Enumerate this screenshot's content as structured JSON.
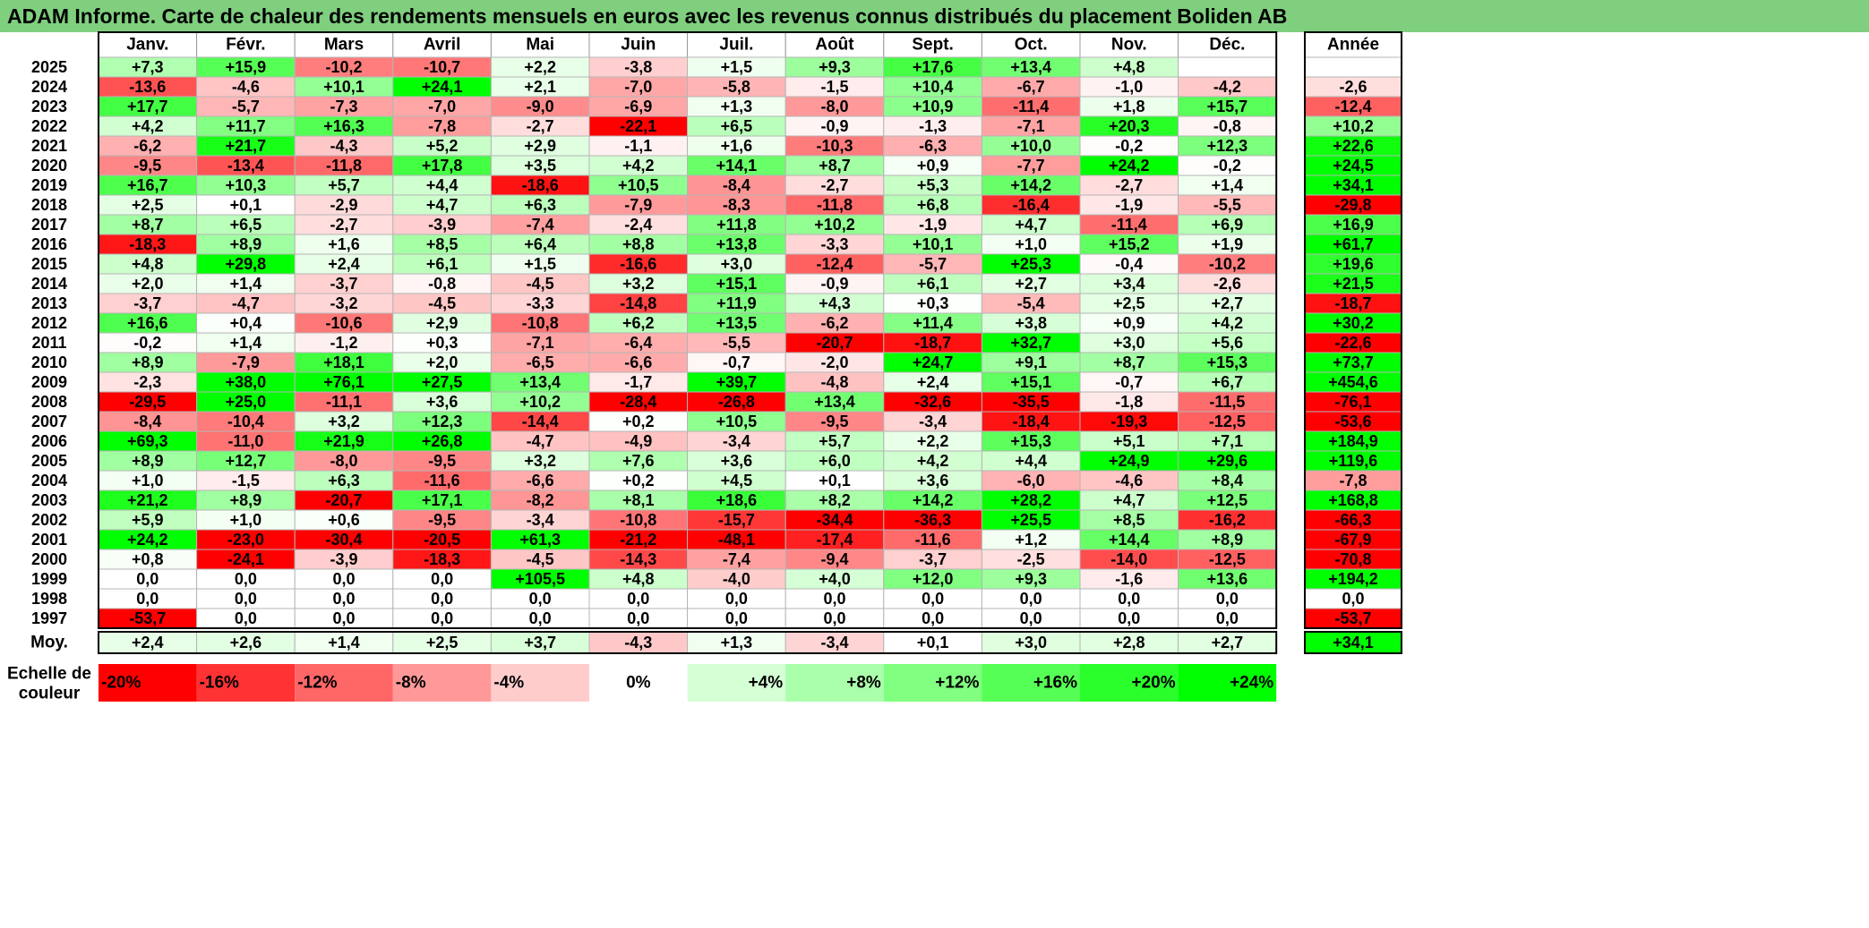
{
  "title": "ADAM Informe. Carte de chaleur des rendements mensuels en euros avec les revenus connus distribués du placement Boliden AB",
  "chart_data": {
    "type": "heatmap",
    "months": [
      "Janv.",
      "Févr.",
      "Mars",
      "Avril",
      "Mai",
      "Juin",
      "Juil.",
      "Août",
      "Sept.",
      "Oct.",
      "Nov.",
      "Déc."
    ],
    "year_header": "Année",
    "rows": [
      {
        "year": "2025",
        "values": [
          "+7,3",
          "+15,9",
          "-10,2",
          "-10,7",
          "+2,2",
          "-3,8",
          "+1,5",
          "+9,3",
          "+17,6",
          "+13,4",
          "+4,8",
          ""
        ],
        "annual": ""
      },
      {
        "year": "2024",
        "values": [
          "-13,6",
          "-4,6",
          "+10,1",
          "+24,1",
          "+2,1",
          "-7,0",
          "-5,8",
          "-1,5",
          "+10,4",
          "-6,7",
          "-1,0",
          "-4,2"
        ],
        "annual": "-2,6"
      },
      {
        "year": "2023",
        "values": [
          "+17,7",
          "-5,7",
          "-7,3",
          "-7,0",
          "-9,0",
          "-6,9",
          "+1,3",
          "-8,0",
          "+10,9",
          "-11,4",
          "+1,8",
          "+15,7"
        ],
        "annual": "-12,4"
      },
      {
        "year": "2022",
        "values": [
          "+4,2",
          "+11,7",
          "+16,3",
          "-7,8",
          "-2,7",
          "-22,1",
          "+6,5",
          "-0,9",
          "-1,3",
          "-7,1",
          "+20,3",
          "-0,8"
        ],
        "annual": "+10,2"
      },
      {
        "year": "2021",
        "values": [
          "-6,2",
          "+21,7",
          "-4,3",
          "+5,2",
          "+2,9",
          "-1,1",
          "+1,6",
          "-10,3",
          "-6,3",
          "+10,0",
          "-0,2",
          "+12,3"
        ],
        "annual": "+22,6"
      },
      {
        "year": "2020",
        "values": [
          "-9,5",
          "-13,4",
          "-11,8",
          "+17,8",
          "+3,5",
          "+4,2",
          "+14,1",
          "+8,7",
          "+0,9",
          "-7,7",
          "+24,2",
          "-0,2"
        ],
        "annual": "+24,5"
      },
      {
        "year": "2019",
        "values": [
          "+16,7",
          "+10,3",
          "+5,7",
          "+4,4",
          "-18,6",
          "+10,5",
          "-8,4",
          "-2,7",
          "+5,3",
          "+14,2",
          "-2,7",
          "+1,4"
        ],
        "annual": "+34,1"
      },
      {
        "year": "2018",
        "values": [
          "+2,5",
          "+0,1",
          "-2,9",
          "+4,7",
          "+6,3",
          "-7,9",
          "-8,3",
          "-11,8",
          "+6,8",
          "-16,4",
          "-1,9",
          "-5,5"
        ],
        "annual": "-29,8"
      },
      {
        "year": "2017",
        "values": [
          "+8,7",
          "+6,5",
          "-2,7",
          "-3,9",
          "-7,4",
          "-2,4",
          "+11,8",
          "+10,2",
          "-1,9",
          "+4,7",
          "-11,4",
          "+6,9"
        ],
        "annual": "+16,9"
      },
      {
        "year": "2016",
        "values": [
          "-18,3",
          "+8,9",
          "+1,6",
          "+8,5",
          "+6,4",
          "+8,8",
          "+13,8",
          "-3,3",
          "+10,1",
          "+1,0",
          "+15,2",
          "+1,9"
        ],
        "annual": "+61,7"
      },
      {
        "year": "2015",
        "values": [
          "+4,8",
          "+29,8",
          "+2,4",
          "+6,1",
          "+1,5",
          "-16,6",
          "+3,0",
          "-12,4",
          "-5,7",
          "+25,3",
          "-0,4",
          "-10,2"
        ],
        "annual": "+19,6"
      },
      {
        "year": "2014",
        "values": [
          "+2,0",
          "+1,4",
          "-3,7",
          "-0,8",
          "-4,5",
          "+3,2",
          "+15,1",
          "-0,9",
          "+6,1",
          "+2,7",
          "+3,4",
          "-2,6"
        ],
        "annual": "+21,5"
      },
      {
        "year": "2013",
        "values": [
          "-3,7",
          "-4,7",
          "-3,2",
          "-4,5",
          "-3,3",
          "-14,8",
          "+11,9",
          "+4,3",
          "+0,3",
          "-5,4",
          "+2,5",
          "+2,7"
        ],
        "annual": "-18,7"
      },
      {
        "year": "2012",
        "values": [
          "+16,6",
          "+0,4",
          "-10,6",
          "+2,9",
          "-10,8",
          "+6,2",
          "+13,5",
          "-6,2",
          "+11,4",
          "+3,8",
          "+0,9",
          "+4,2"
        ],
        "annual": "+30,2"
      },
      {
        "year": "2011",
        "values": [
          "-0,2",
          "+1,4",
          "-1,2",
          "+0,3",
          "-7,1",
          "-6,4",
          "-5,5",
          "-20,7",
          "-18,7",
          "+32,7",
          "+3,0",
          "+5,6"
        ],
        "annual": "-22,6"
      },
      {
        "year": "2010",
        "values": [
          "+8,9",
          "-7,9",
          "+18,1",
          "+2,0",
          "-6,5",
          "-6,6",
          "-0,7",
          "-2,0",
          "+24,7",
          "+9,1",
          "+8,7",
          "+15,3"
        ],
        "annual": "+73,7"
      },
      {
        "year": "2009",
        "values": [
          "-2,3",
          "+38,0",
          "+76,1",
          "+27,5",
          "+13,4",
          "-1,7",
          "+39,7",
          "-4,8",
          "+2,4",
          "+15,1",
          "-0,7",
          "+6,7"
        ],
        "annual": "+454,6"
      },
      {
        "year": "2008",
        "values": [
          "-29,5",
          "+25,0",
          "-11,1",
          "+3,6",
          "+10,2",
          "-28,4",
          "-26,8",
          "+13,4",
          "-32,6",
          "-35,5",
          "-1,8",
          "-11,5"
        ],
        "annual": "-76,1"
      },
      {
        "year": "2007",
        "values": [
          "-8,4",
          "-10,4",
          "+3,2",
          "+12,3",
          "-14,4",
          "+0,2",
          "+10,5",
          "-9,5",
          "-3,4",
          "-18,4",
          "-19,3",
          "-12,5"
        ],
        "annual": "-53,6"
      },
      {
        "year": "2006",
        "values": [
          "+69,3",
          "-11,0",
          "+21,9",
          "+26,8",
          "-4,7",
          "-4,9",
          "-3,4",
          "+5,7",
          "+2,2",
          "+15,3",
          "+5,1",
          "+7,1"
        ],
        "annual": "+184,9"
      },
      {
        "year": "2005",
        "values": [
          "+8,9",
          "+12,7",
          "-8,0",
          "-9,5",
          "+3,2",
          "+7,6",
          "+3,6",
          "+6,0",
          "+4,2",
          "+4,4",
          "+24,9",
          "+29,6"
        ],
        "annual": "+119,6"
      },
      {
        "year": "2004",
        "values": [
          "+1,0",
          "-1,5",
          "+6,3",
          "-11,6",
          "-6,6",
          "+0,2",
          "+4,5",
          "+0,1",
          "+3,6",
          "-6,0",
          "-4,6",
          "+8,4"
        ],
        "annual": "-7,8"
      },
      {
        "year": "2003",
        "values": [
          "+21,2",
          "+8,9",
          "-20,7",
          "+17,1",
          "-8,2",
          "+8,1",
          "+18,6",
          "+8,2",
          "+14,2",
          "+28,2",
          "+4,7",
          "+12,5"
        ],
        "annual": "+168,8"
      },
      {
        "year": "2002",
        "values": [
          "+5,9",
          "+1,0",
          "+0,6",
          "-9,5",
          "-3,4",
          "-10,8",
          "-15,7",
          "-34,4",
          "-36,3",
          "+25,5",
          "+8,5",
          "-16,2"
        ],
        "annual": "-66,3"
      },
      {
        "year": "2001",
        "values": [
          "+24,2",
          "-23,0",
          "-30,4",
          "-20,5",
          "+61,3",
          "-21,2",
          "-48,1",
          "-17,4",
          "-11,6",
          "+1,2",
          "+14,4",
          "+8,9"
        ],
        "annual": "-67,9"
      },
      {
        "year": "2000",
        "values": [
          "+0,8",
          "-24,1",
          "-3,9",
          "-18,3",
          "-4,5",
          "-14,3",
          "-7,4",
          "-9,4",
          "-3,7",
          "-2,5",
          "-14,0",
          "-12,5"
        ],
        "annual": "-70,8"
      },
      {
        "year": "1999",
        "values": [
          "0,0",
          "0,0",
          "0,0",
          "0,0",
          "+105,5",
          "+4,8",
          "-4,0",
          "+4,0",
          "+12,0",
          "+9,3",
          "-1,6",
          "+13,6"
        ],
        "annual": "+194,2"
      },
      {
        "year": "1998",
        "values": [
          "0,0",
          "0,0",
          "0,0",
          "0,0",
          "0,0",
          "0,0",
          "0,0",
          "0,0",
          "0,0",
          "0,0",
          "0,0",
          "0,0"
        ],
        "annual": "0,0"
      },
      {
        "year": "1997",
        "values": [
          "-53,7",
          "0,0",
          "0,0",
          "0,0",
          "0,0",
          "0,0",
          "0,0",
          "0,0",
          "0,0",
          "0,0",
          "0,0",
          "0,0"
        ],
        "annual": "-53,7"
      }
    ],
    "average": {
      "label": "Moy.",
      "values": [
        "+2,4",
        "+2,6",
        "+1,4",
        "+2,5",
        "+3,7",
        "-4,3",
        "+1,3",
        "-3,4",
        "+0,1",
        "+3,0",
        "+2,8",
        "+2,7"
      ],
      "annual": "+34,1"
    },
    "scale": {
      "label": "Echelle de couleur",
      "stops": [
        "-20%",
        "-16%",
        "-12%",
        "-8%",
        "-4%",
        "0%",
        "+4%",
        "+8%",
        "+12%",
        "+16%",
        "+20%",
        "+24%"
      ],
      "values": [
        -20,
        -16,
        -12,
        -8,
        -4,
        0,
        4,
        8,
        12,
        16,
        20,
        24
      ]
    },
    "colors": {
      "negative": "#ff0000",
      "neutral": "#ffffff",
      "positive": "#00ff00",
      "title_bar": "#7fcf7f"
    }
  }
}
